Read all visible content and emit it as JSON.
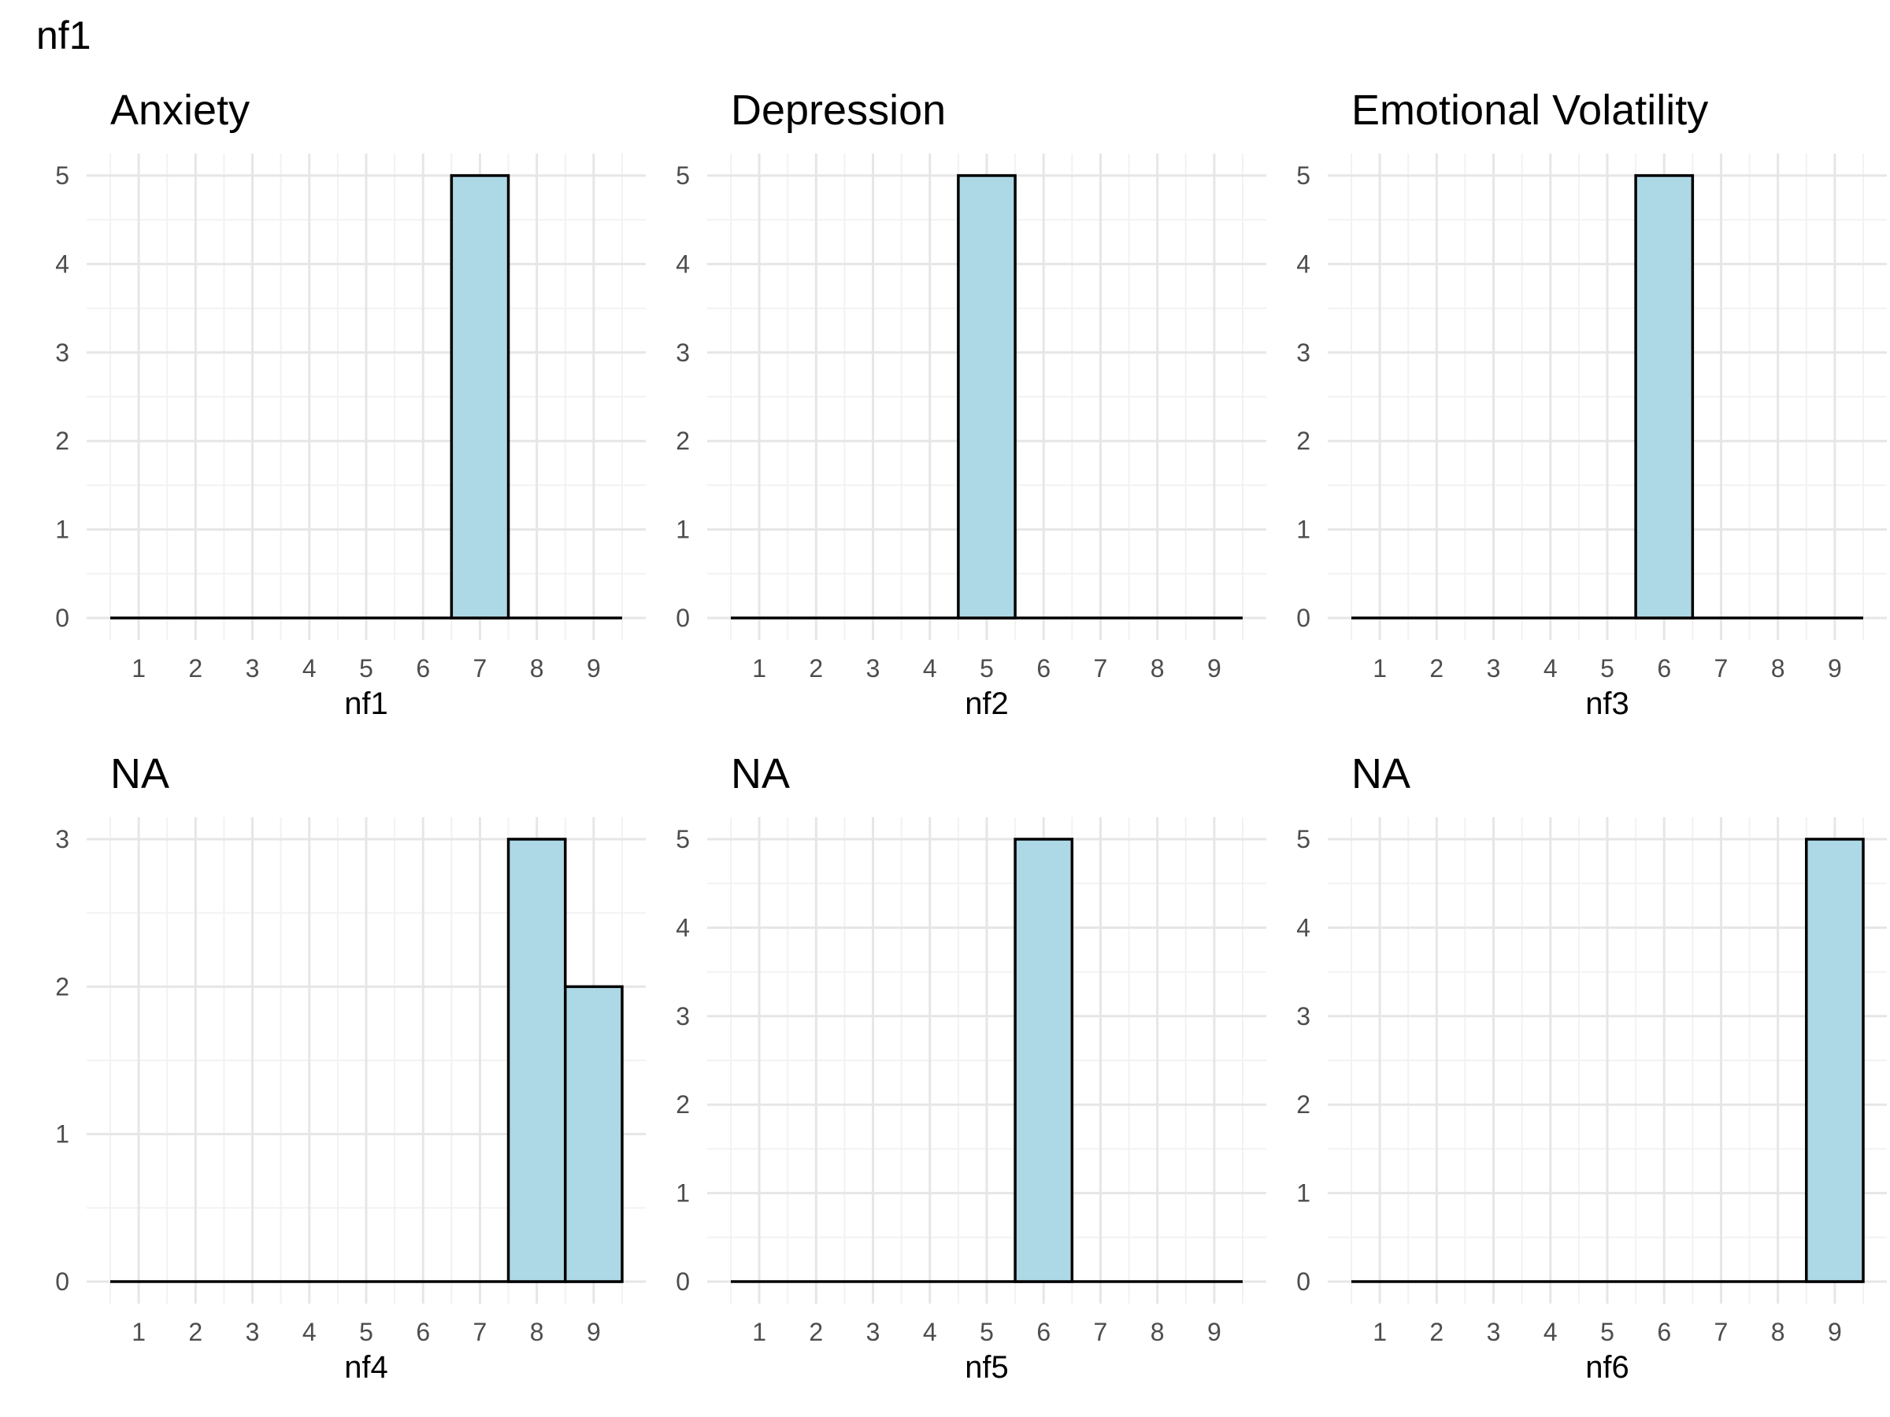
{
  "title": "nf1",
  "chart_data": [
    {
      "type": "bar",
      "title": "Anxiety",
      "xlabel": "nf1",
      "ylabel": "",
      "categories": [
        "1",
        "2",
        "3",
        "4",
        "5",
        "6",
        "7",
        "8",
        "9"
      ],
      "values": [
        0,
        0,
        0,
        0,
        0,
        0,
        5,
        0,
        0
      ],
      "xlim": [
        0.5,
        9.5
      ],
      "ylim": [
        0,
        5
      ],
      "yticks": [
        "0",
        "1",
        "2",
        "3",
        "4",
        "5"
      ],
      "grid": true,
      "legend": "none",
      "colors": {
        "bar_fill": "#add8e6",
        "bar_stroke": "#000000"
      }
    },
    {
      "type": "bar",
      "title": "Depression",
      "xlabel": "nf2",
      "ylabel": "",
      "categories": [
        "1",
        "2",
        "3",
        "4",
        "5",
        "6",
        "7",
        "8",
        "9"
      ],
      "values": [
        0,
        0,
        0,
        0,
        5,
        0,
        0,
        0,
        0
      ],
      "xlim": [
        0.5,
        9.5
      ],
      "ylim": [
        0,
        5
      ],
      "yticks": [
        "0",
        "1",
        "2",
        "3",
        "4",
        "5"
      ],
      "grid": true,
      "legend": "none",
      "colors": {
        "bar_fill": "#add8e6",
        "bar_stroke": "#000000"
      }
    },
    {
      "type": "bar",
      "title": "Emotional Volatility",
      "xlabel": "nf3",
      "ylabel": "",
      "categories": [
        "1",
        "2",
        "3",
        "4",
        "5",
        "6",
        "7",
        "8",
        "9"
      ],
      "values": [
        0,
        0,
        0,
        0,
        0,
        5,
        0,
        0,
        0
      ],
      "xlim": [
        0.5,
        9.5
      ],
      "ylim": [
        0,
        5
      ],
      "yticks": [
        "0",
        "1",
        "2",
        "3",
        "4",
        "5"
      ],
      "grid": true,
      "legend": "none",
      "colors": {
        "bar_fill": "#add8e6",
        "bar_stroke": "#000000"
      }
    },
    {
      "type": "bar",
      "title": "NA",
      "xlabel": "nf4",
      "ylabel": "",
      "categories": [
        "1",
        "2",
        "3",
        "4",
        "5",
        "6",
        "7",
        "8",
        "9"
      ],
      "values": [
        0,
        0,
        0,
        0,
        0,
        0,
        0,
        3,
        2
      ],
      "xlim": [
        0.5,
        9.5
      ],
      "ylim": [
        0,
        3
      ],
      "yticks": [
        "0",
        "1",
        "2",
        "3"
      ],
      "grid": true,
      "legend": "none",
      "colors": {
        "bar_fill": "#add8e6",
        "bar_stroke": "#000000"
      }
    },
    {
      "type": "bar",
      "title": "NA",
      "xlabel": "nf5",
      "ylabel": "",
      "categories": [
        "1",
        "2",
        "3",
        "4",
        "5",
        "6",
        "7",
        "8",
        "9"
      ],
      "values": [
        0,
        0,
        0,
        0,
        0,
        5,
        0,
        0,
        0
      ],
      "xlim": [
        0.5,
        9.5
      ],
      "ylim": [
        0,
        5
      ],
      "yticks": [
        "0",
        "1",
        "2",
        "3",
        "4",
        "5"
      ],
      "grid": true,
      "legend": "none",
      "colors": {
        "bar_fill": "#add8e6",
        "bar_stroke": "#000000"
      }
    },
    {
      "type": "bar",
      "title": "NA",
      "xlabel": "nf6",
      "ylabel": "",
      "categories": [
        "1",
        "2",
        "3",
        "4",
        "5",
        "6",
        "7",
        "8",
        "9"
      ],
      "values": [
        0,
        0,
        0,
        0,
        0,
        0,
        0,
        0,
        5
      ],
      "xlim": [
        0.5,
        9.5
      ],
      "ylim": [
        0,
        5
      ],
      "yticks": [
        "0",
        "1",
        "2",
        "3",
        "4",
        "5"
      ],
      "grid": true,
      "legend": "none",
      "colors": {
        "bar_fill": "#add8e6",
        "bar_stroke": "#000000"
      }
    }
  ]
}
